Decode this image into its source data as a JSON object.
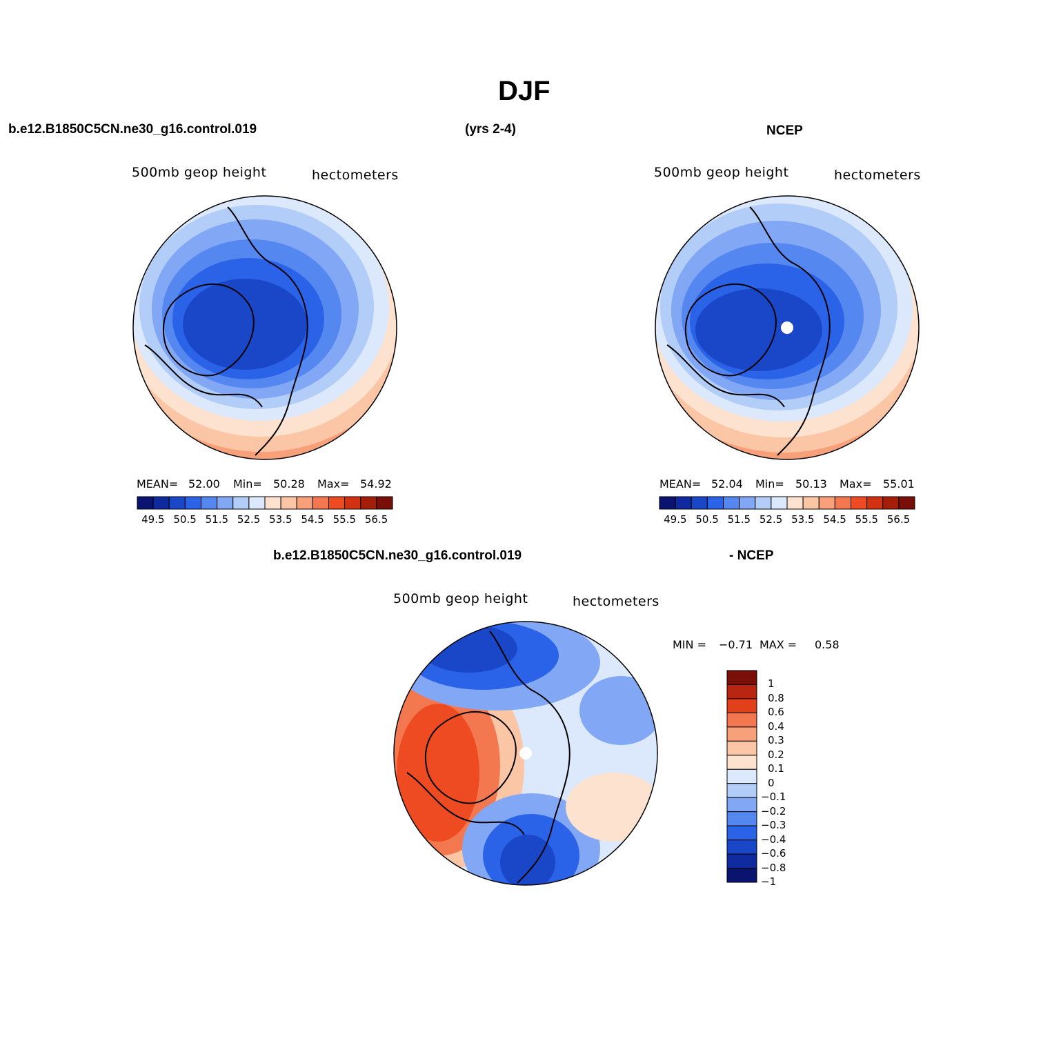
{
  "title": "DJF",
  "top_left_panel": {
    "case_name": "b.e12.B1850C5CN.ne30_g16.control.019",
    "years": "(yrs 2-4)",
    "field_label": "500mb  geop  height",
    "units_label": "hectometers",
    "stats": {
      "mean_label": "MEAN=",
      "mean_value": "52.00",
      "min_label": "Min=",
      "min_value": "50.28",
      "max_label": "Max=",
      "max_value": "54.92"
    }
  },
  "top_right_panel": {
    "obs_name": "NCEP",
    "field_label": "500mb  geop  height",
    "units_label": "hectometers",
    "stats": {
      "mean_label": "MEAN=",
      "mean_value": "52.04",
      "min_label": "Min=",
      "min_value": "50.13",
      "max_label": "Max=",
      "max_value": "55.01"
    }
  },
  "diff_panel": {
    "case_name": "b.e12.B1850C5CN.ne30_g16.control.019",
    "minus_label": "- NCEP",
    "field_label": "500mb  geop  height",
    "units_label": "hectometers",
    "stats": {
      "min_label": "MIN =",
      "min_value": "−0.71",
      "max_label": "MAX =",
      "max_value": "0.58"
    }
  },
  "colorbars": {
    "abs": {
      "colors": [
        "#0a1470",
        "#0f2a9e",
        "#1a46c8",
        "#2a62e8",
        "#5587f0",
        "#82a8f5",
        "#b2cdf8",
        "#dce8fb",
        "#fde3cf",
        "#fbc6a6",
        "#f7a07a",
        "#f4784f",
        "#ee4b22",
        "#d23212",
        "#a51e0a",
        "#7a0e08"
      ],
      "tick_labels": [
        "49.5",
        "50.5",
        "51.5",
        "52.5",
        "53.5",
        "54.5",
        "55.5",
        "56.5"
      ]
    },
    "diff": {
      "colors_top_to_bottom": [
        "#7a0e08",
        "#b82510",
        "#e2401a",
        "#f4784f",
        "#f7a07a",
        "#fbc6a6",
        "#fde3cf",
        "#dce8fb",
        "#b2cdf8",
        "#82a8f5",
        "#5587f0",
        "#2a62e8",
        "#1a46c8",
        "#0f2a9e",
        "#0a1470"
      ],
      "tick_labels": [
        "1",
        "0.8",
        "0.6",
        "0.4",
        "0.3",
        "0.2",
        "0.1",
        "0",
        "−0.1",
        "−0.2",
        "−0.3",
        "−0.4",
        "−0.6",
        "−0.8",
        "−1"
      ]
    }
  },
  "maps": {
    "model_colors": {
      "center": "#1a46c8",
      "ring1": "#2a62e8",
      "ring2": "#5587f0",
      "ring3": "#82a8f5",
      "ring4": "#b2cdf8",
      "ring5": "#dce8fb",
      "warm1": "#fde3cf",
      "warm2": "#fbc6a6",
      "warm3": "#f7a07a",
      "warm4": "#f4784f"
    },
    "diff_colors": {
      "base": "#dce8fb",
      "red_strong": "#ee4b22",
      "red_mid": "#f4784f",
      "red_light": "#fbc6a6",
      "blue_strong": "#1a46c8",
      "blue_mid": "#2a62e8",
      "blue_light": "#82a8f5",
      "cream": "#fde3cf"
    }
  }
}
